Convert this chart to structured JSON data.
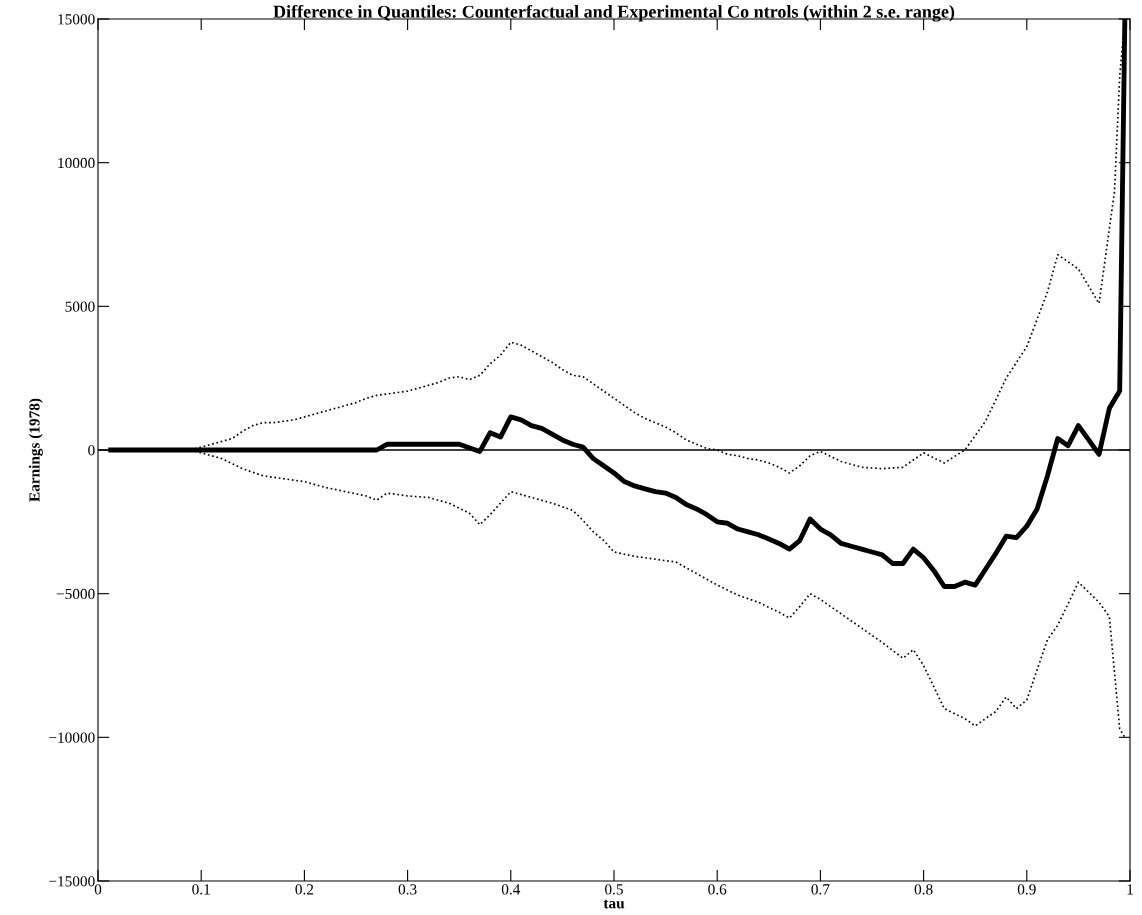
{
  "chart_data": {
    "type": "line",
    "title": "Difference in Quantiles: Counterfactual and Experimental Co ntrols (within 2 s.e. range)",
    "xlabel": "tau",
    "ylabel": "Earnings (1978)",
    "xlim": [
      0,
      1
    ],
    "ylim": [
      -15000,
      15000
    ],
    "xticks": [
      0,
      0.1,
      0.2,
      0.3,
      0.4,
      0.5,
      0.6,
      0.7,
      0.8,
      0.9,
      1
    ],
    "yticks": [
      {
        "value": -15000,
        "label": "−15000"
      },
      {
        "value": -10000,
        "label": "−10000"
      },
      {
        "value": -5000,
        "label": "−5000"
      },
      0,
      5000,
      10000,
      15000
    ],
    "grid": false,
    "legend": false,
    "ref_lines": [
      {
        "axis": "y",
        "value": 0,
        "color": "#000000",
        "line_style": "solid"
      }
    ],
    "series": [
      {
        "color": "#000000",
        "line_style": "solid",
        "x": [
          0.01,
          0.27,
          0.28,
          0.35,
          0.37,
          0.38,
          0.39,
          0.4,
          0.41,
          0.42,
          0.43,
          0.44,
          0.45,
          0.46,
          0.47,
          0.48,
          0.49,
          0.5,
          0.51,
          0.52,
          0.53,
          0.54,
          0.55,
          0.56,
          0.57,
          0.58,
          0.59,
          0.6,
          0.61,
          0.62,
          0.63,
          0.64,
          0.65,
          0.66,
          0.67,
          0.68,
          0.69,
          0.7,
          0.71,
          0.72,
          0.73,
          0.74,
          0.75,
          0.76,
          0.77,
          0.78,
          0.79,
          0.8,
          0.81,
          0.82,
          0.83,
          0.84,
          0.85,
          0.86,
          0.87,
          0.88,
          0.89,
          0.9,
          0.91,
          0.92,
          0.93,
          0.94,
          0.95,
          0.96,
          0.97,
          0.98,
          0.99,
          0.995
        ],
        "values": [
          0,
          0,
          200,
          200,
          -50,
          600,
          450,
          1150,
          1050,
          850,
          750,
          550,
          350,
          200,
          100,
          -300,
          -550,
          -800,
          -1100,
          -1250,
          -1350,
          -1450,
          -1500,
          -1650,
          -1900,
          -2050,
          -2250,
          -2500,
          -2550,
          -2750,
          -2850,
          -2950,
          -3100,
          -3250,
          -3450,
          -3150,
          -2400,
          -2750,
          -2950,
          -3250,
          -3350,
          -3450,
          -3550,
          -3650,
          -3950,
          -3950,
          -3450,
          -3750,
          -4200,
          -4750,
          -4750,
          -4600,
          -4700,
          -4150,
          -3600,
          -3000,
          -3050,
          -2650,
          -2050,
          -900,
          400,
          150,
          850,
          350,
          -150,
          1450,
          2050,
          15000
        ]
      },
      {
        "color": "#000000",
        "line_style": "dotted",
        "x": [
          0.09,
          0.1,
          0.11,
          0.12,
          0.13,
          0.14,
          0.15,
          0.16,
          0.17,
          0.18,
          0.19,
          0.2,
          0.21,
          0.22,
          0.23,
          0.24,
          0.25,
          0.26,
          0.27,
          0.28,
          0.29,
          0.3,
          0.31,
          0.32,
          0.33,
          0.34,
          0.35,
          0.36,
          0.37,
          0.38,
          0.39,
          0.4,
          0.41,
          0.42,
          0.43,
          0.44,
          0.45,
          0.46,
          0.47,
          0.48,
          0.49,
          0.5,
          0.51,
          0.52,
          0.53,
          0.54,
          0.55,
          0.56,
          0.57,
          0.58,
          0.59,
          0.6,
          0.61,
          0.62,
          0.63,
          0.64,
          0.65,
          0.66,
          0.67,
          0.68,
          0.69,
          0.7,
          0.72,
          0.74,
          0.76,
          0.78,
          0.8,
          0.82,
          0.84,
          0.86,
          0.88,
          0.9,
          0.92,
          0.93,
          0.95,
          0.97,
          0.985,
          0.99,
          0.995
        ],
        "values": [
          0,
          100,
          200,
          300,
          400,
          650,
          850,
          950,
          950,
          1000,
          1050,
          1150,
          1250,
          1350,
          1450,
          1550,
          1650,
          1800,
          1900,
          1950,
          2000,
          2050,
          2150,
          2250,
          2350,
          2500,
          2550,
          2450,
          2600,
          3000,
          3300,
          3750,
          3650,
          3450,
          3250,
          3050,
          2800,
          2600,
          2550,
          2300,
          2050,
          1800,
          1550,
          1300,
          1100,
          950,
          800,
          600,
          350,
          200,
          50,
          0,
          -150,
          -200,
          -300,
          -350,
          -450,
          -600,
          -800,
          -550,
          -200,
          -50,
          -400,
          -600,
          -650,
          -600,
          -100,
          -450,
          0,
          1000,
          2500,
          3600,
          5500,
          6800,
          6300,
          5100,
          9000,
          13000,
          15000
        ]
      },
      {
        "color": "#000000",
        "line_style": "dotted",
        "x": [
          0.09,
          0.1,
          0.12,
          0.14,
          0.16,
          0.18,
          0.2,
          0.22,
          0.24,
          0.26,
          0.27,
          0.28,
          0.3,
          0.32,
          0.34,
          0.36,
          0.37,
          0.38,
          0.39,
          0.4,
          0.42,
          0.44,
          0.46,
          0.47,
          0.48,
          0.49,
          0.5,
          0.52,
          0.54,
          0.56,
          0.58,
          0.6,
          0.62,
          0.64,
          0.66,
          0.67,
          0.68,
          0.69,
          0.7,
          0.72,
          0.74,
          0.76,
          0.78,
          0.79,
          0.8,
          0.82,
          0.84,
          0.85,
          0.87,
          0.88,
          0.89,
          0.9,
          0.92,
          0.93,
          0.95,
          0.97,
          0.98,
          0.99,
          0.995
        ],
        "values": [
          0,
          -100,
          -300,
          -650,
          -900,
          -1000,
          -1100,
          -1300,
          -1450,
          -1600,
          -1750,
          -1500,
          -1600,
          -1650,
          -1850,
          -2200,
          -2600,
          -2250,
          -1850,
          -1450,
          -1650,
          -1850,
          -2100,
          -2450,
          -2850,
          -3150,
          -3550,
          -3700,
          -3800,
          -3900,
          -4300,
          -4700,
          -5050,
          -5300,
          -5650,
          -5850,
          -5450,
          -5000,
          -5200,
          -5700,
          -6200,
          -6700,
          -7250,
          -6950,
          -7500,
          -9000,
          -9350,
          -9600,
          -9100,
          -8600,
          -9000,
          -8700,
          -6600,
          -6100,
          -4600,
          -5300,
          -5800,
          -9700,
          -10000
        ]
      }
    ]
  }
}
